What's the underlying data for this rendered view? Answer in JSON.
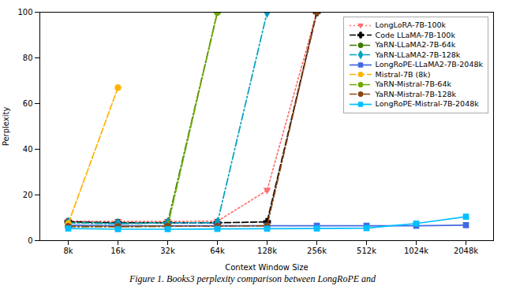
{
  "chart_data": {
    "type": "line",
    "xlabel": "Context Window Size",
    "ylabel": "Perplexity",
    "caption": "Figure 1. Books3 perplexity comparison between LongRoPE and",
    "categories": [
      "8k",
      "16k",
      "32k",
      "64k",
      "128k",
      "256k",
      "512k",
      "1024k",
      "2048k"
    ],
    "ylim": [
      0,
      100
    ],
    "yticks": [
      0,
      20,
      40,
      60,
      80,
      100
    ],
    "grid": false,
    "legend": "upper right",
    "series": [
      {
        "name": "LongLoRA-7B-100k",
        "color": "#FF7070",
        "marker": "triangle-down",
        "line_style": "dotted",
        "values": [
          8.5,
          8.4,
          8.4,
          8.5,
          22.0,
          100.0,
          null,
          null,
          null
        ]
      },
      {
        "name": "Code LLaMA-7B-100k",
        "color": "#000000",
        "marker": "plus",
        "line_style": "dashed",
        "values": [
          8.2,
          7.8,
          7.8,
          7.8,
          8.2,
          100.0,
          null,
          null,
          null
        ]
      },
      {
        "name": "YaRN-LLaMA2-7B-64k",
        "color": "#3A7D00",
        "marker": "circle",
        "line_style": "dashdot",
        "values": [
          7.8,
          7.5,
          7.8,
          100.0,
          null,
          null,
          null,
          null,
          null
        ]
      },
      {
        "name": "YaRN-LLaMA2-7B-128k",
        "color": "#00A0C0",
        "marker": "diamond",
        "line_style": "dashdot",
        "values": [
          7.8,
          7.5,
          7.8,
          7.8,
          100.0,
          null,
          null,
          null,
          null
        ]
      },
      {
        "name": "LongRoPE-LLaMA2-7B-2048k",
        "color": "#4169E1",
        "marker": "square",
        "line_style": "solid",
        "values": [
          6.8,
          6.5,
          6.5,
          6.5,
          6.5,
          6.5,
          6.5,
          6.5,
          6.8
        ]
      },
      {
        "name": "Mistral-7B (8k)",
        "color": "#FFB300",
        "marker": "circle",
        "line_style": "dashed",
        "values": [
          7.5,
          67.0,
          null,
          null,
          null,
          null,
          null,
          null,
          null
        ]
      },
      {
        "name": "YaRN-Mistral-7B-64k",
        "color": "#6EAA00",
        "marker": "circle",
        "line_style": "dashdot",
        "values": [
          6.2,
          6.1,
          6.3,
          100.0,
          null,
          null,
          null,
          null,
          null
        ]
      },
      {
        "name": "YaRN-Mistral-7B-128k",
        "color": "#8B4513",
        "marker": "circle",
        "line_style": "dashdot",
        "values": [
          6.2,
          6.1,
          6.3,
          6.3,
          6.5,
          100.0,
          null,
          null,
          null
        ]
      },
      {
        "name": "LongRoPE-Mistral-7B-2048k",
        "color": "#00BFFF",
        "marker": "square",
        "line_style": "solid",
        "values": [
          5.3,
          5.0,
          5.0,
          5.1,
          5.2,
          5.3,
          5.5,
          7.5,
          10.5
        ]
      }
    ]
  }
}
